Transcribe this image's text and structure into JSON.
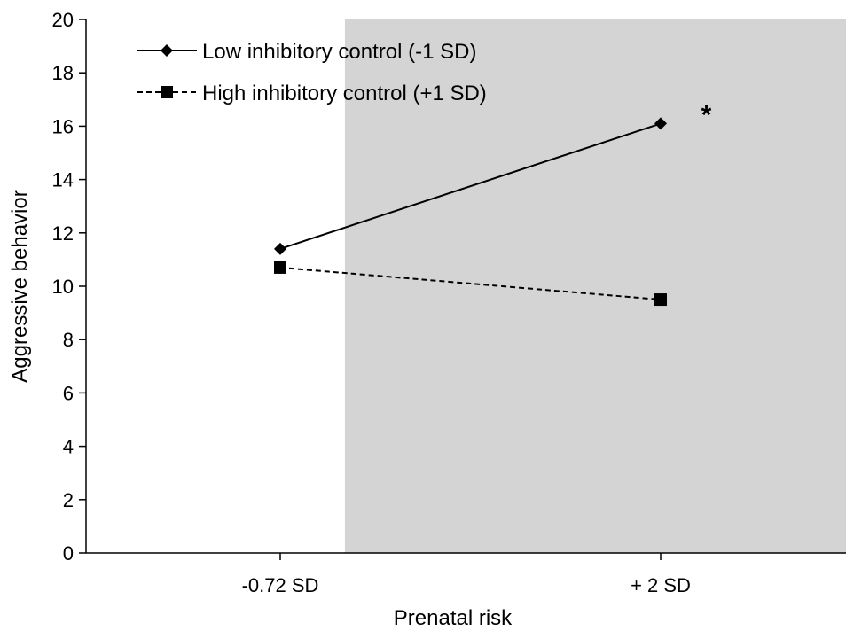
{
  "chart_data": {
    "type": "line",
    "title": "",
    "xlabel": "Prenatal risk",
    "ylabel": "Aggressive behavior",
    "categories": [
      "-0.72 SD",
      "+ 2 SD"
    ],
    "ylim": [
      0,
      20
    ],
    "yticks": [
      0,
      2,
      4,
      6,
      8,
      10,
      12,
      14,
      16,
      18,
      20
    ],
    "grid": false,
    "legend_position": "top-left",
    "shaded_region": {
      "x_from": 1.17,
      "x_to": 2.5,
      "color": "#d4d4d4"
    },
    "series": [
      {
        "name": "Low inhibitory control (-1 SD)",
        "values": [
          11.4,
          16.1
        ],
        "marker": "diamond",
        "line_style": "solid",
        "color": "#000000"
      },
      {
        "name": "High inhibitory control (+1 SD)",
        "values": [
          10.7,
          9.5
        ],
        "marker": "square",
        "line_style": "dashed",
        "color": "#000000"
      }
    ],
    "annotations": [
      {
        "text": "*",
        "x": 2.12,
        "y": 16.7
      }
    ]
  }
}
